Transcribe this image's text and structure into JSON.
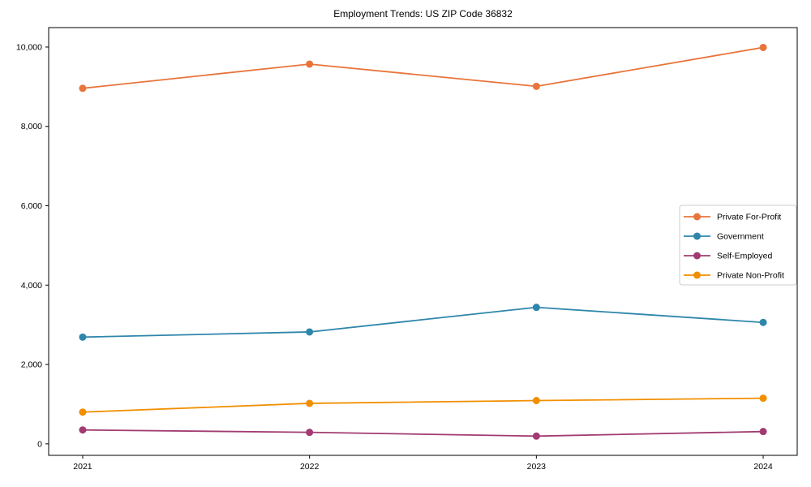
{
  "chart_data": {
    "type": "line",
    "title": "Employment Trends: US ZIP Code 36832",
    "xlabel": "",
    "ylabel": "",
    "x": [
      2021,
      2022,
      2023,
      2024
    ],
    "x_tick_labels": [
      "2021",
      "2022",
      "2023",
      "2024"
    ],
    "y_ticks": [
      0,
      2000,
      4000,
      6000,
      8000,
      10000
    ],
    "y_tick_labels": [
      "0",
      "2,000",
      "4,000",
      "6,000",
      "8,000",
      "10,000"
    ],
    "xlim": [
      2020.85,
      2024.15
    ],
    "ylim": [
      -290,
      10490
    ],
    "grid": false,
    "legend_position": "center-right",
    "background_color": "#ffffff",
    "axis_color": "#000000",
    "legend_border_color": "#cccccc",
    "series": [
      {
        "name": "Private For-Profit",
        "color": "#E8743B",
        "values": [
          8960,
          9570,
          9010,
          9990
        ]
      },
      {
        "name": "Government",
        "color": "#2E86AB",
        "values": [
          2690,
          2820,
          3440,
          3060
        ]
      },
      {
        "name": "Self-Employed",
        "color": "#A23B72",
        "values": [
          350,
          290,
          195,
          310
        ]
      },
      {
        "name": "Private Non-Profit",
        "color": "#F18F01",
        "values": [
          800,
          1020,
          1090,
          1150
        ]
      }
    ]
  }
}
